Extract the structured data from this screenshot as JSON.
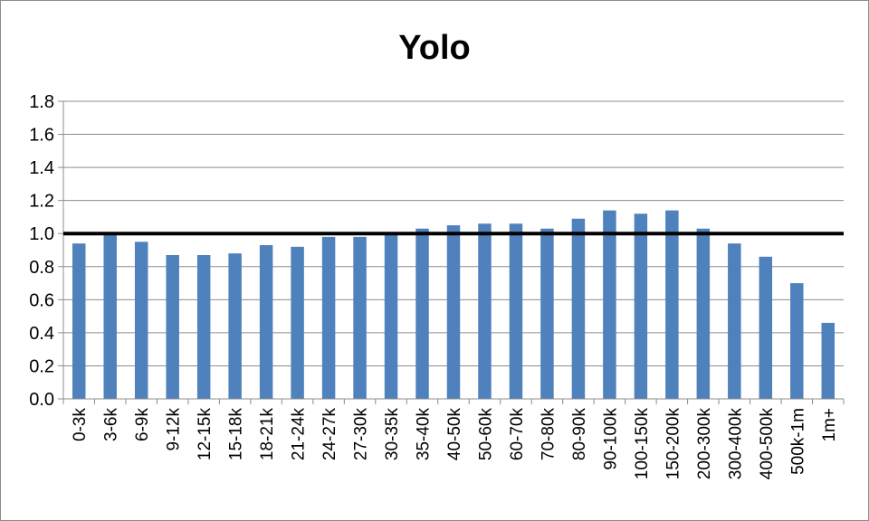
{
  "chart_data": {
    "type": "bar",
    "title": "Yolo",
    "xlabel": "",
    "ylabel": "",
    "categories": [
      "0-3k",
      "3-6k",
      "6-9k",
      "9-12k",
      "12-15k",
      "15-18k",
      "18-21k",
      "21-24k",
      "24-27k",
      "27-30k",
      "30-35k",
      "35-40k",
      "40-50k",
      "50-60k",
      "60-70k",
      "70-80k",
      "80-90k",
      "90-100k",
      "100-150k",
      "150-200k",
      "200-300k",
      "300-400k",
      "400-500k",
      "500k-1m",
      "1m+"
    ],
    "values": [
      0.94,
      1.0,
      0.95,
      0.87,
      0.87,
      0.88,
      0.93,
      0.92,
      0.98,
      0.98,
      1.0,
      1.03,
      1.05,
      1.06,
      1.06,
      1.03,
      1.09,
      1.14,
      1.12,
      1.14,
      1.03,
      0.94,
      0.86,
      0.7,
      0.46
    ],
    "ylim": [
      0,
      1.8
    ],
    "yticks": [
      "0.0",
      "0.2",
      "0.4",
      "0.6",
      "0.8",
      "1.0",
      "1.2",
      "1.4",
      "1.6",
      "1.8"
    ],
    "reference_line": 1.0,
    "grid": true,
    "legend": "none",
    "bar_color": "#4F81BD",
    "reference_line_color": "#000000"
  }
}
